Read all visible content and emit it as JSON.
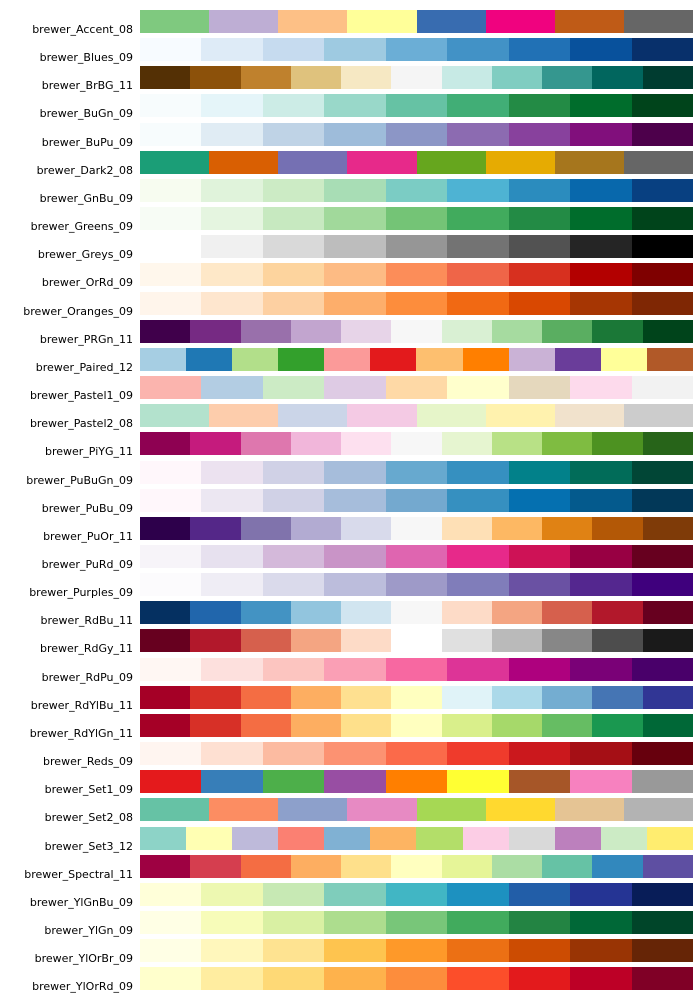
{
  "figure": {
    "background": "#ffffff",
    "text_color": "#000000"
  },
  "chart_data": {
    "type": "table",
    "description": "ColorBrewer palette swatch chart: each row shows a palette name and its discrete color swatches",
    "legend": "none",
    "grid": false,
    "rows": [
      {
        "label": "brewer_Accent_08",
        "colors": [
          "#7fc97f",
          "#beaed4",
          "#fdc086",
          "#ffff99",
          "#386cb0",
          "#f0027f",
          "#bf5b17",
          "#666666"
        ]
      },
      {
        "label": "brewer_Blues_09",
        "colors": [
          "#f7fbff",
          "#deebf7",
          "#c6dbef",
          "#9ecae1",
          "#6baed6",
          "#4292c6",
          "#2171b5",
          "#08519c",
          "#08306b"
        ]
      },
      {
        "label": "brewer_BrBG_11",
        "colors": [
          "#543005",
          "#8c510a",
          "#bf812d",
          "#dfc27d",
          "#f6e8c3",
          "#f5f5f5",
          "#c7eae5",
          "#80cdc1",
          "#35978f",
          "#01665e",
          "#003c30"
        ]
      },
      {
        "label": "brewer_BuGn_09",
        "colors": [
          "#f7fcfd",
          "#e5f5f9",
          "#ccece6",
          "#99d8c9",
          "#66c2a4",
          "#41ae76",
          "#238b45",
          "#006d2c",
          "#00441b"
        ]
      },
      {
        "label": "brewer_BuPu_09",
        "colors": [
          "#f7fcfd",
          "#e0ecf4",
          "#bfd3e6",
          "#9ebcda",
          "#8c96c6",
          "#8c6bb1",
          "#88419d",
          "#810f7c",
          "#4d004b"
        ]
      },
      {
        "label": "brewer_Dark2_08",
        "colors": [
          "#1b9e77",
          "#d95f02",
          "#7570b3",
          "#e7298a",
          "#66a61e",
          "#e6ab02",
          "#a6761d",
          "#666666"
        ]
      },
      {
        "label": "brewer_GnBu_09",
        "colors": [
          "#f7fcf0",
          "#e0f3db",
          "#ccebc5",
          "#a8ddb5",
          "#7bccc4",
          "#4eb3d3",
          "#2b8cbe",
          "#0868ac",
          "#084081"
        ]
      },
      {
        "label": "brewer_Greens_09",
        "colors": [
          "#f7fcf5",
          "#e5f5e0",
          "#c7e9c0",
          "#a1d99b",
          "#74c476",
          "#41ab5d",
          "#238b45",
          "#006d2c",
          "#00441b"
        ]
      },
      {
        "label": "brewer_Greys_09",
        "colors": [
          "#ffffff",
          "#f0f0f0",
          "#d9d9d9",
          "#bdbdbd",
          "#969696",
          "#737373",
          "#525252",
          "#252525",
          "#000000"
        ]
      },
      {
        "label": "brewer_OrRd_09",
        "colors": [
          "#fff7ec",
          "#fee8c8",
          "#fdd49e",
          "#fdbb84",
          "#fc8d59",
          "#ef6548",
          "#d7301f",
          "#b30000",
          "#7f0000"
        ]
      },
      {
        "label": "brewer_Oranges_09",
        "colors": [
          "#fff5eb",
          "#fee6ce",
          "#fdd0a2",
          "#fdae6b",
          "#fd8d3c",
          "#f16913",
          "#d94801",
          "#a63603",
          "#7f2704"
        ]
      },
      {
        "label": "brewer_PRGn_11",
        "colors": [
          "#40004b",
          "#762a83",
          "#9970ab",
          "#c2a5cf",
          "#e7d4e8",
          "#f7f7f7",
          "#d9f0d3",
          "#a6dba0",
          "#5aae61",
          "#1b7837",
          "#00441b"
        ]
      },
      {
        "label": "brewer_Paired_12",
        "colors": [
          "#a6cee3",
          "#1f78b4",
          "#b2df8a",
          "#33a02c",
          "#fb9a99",
          "#e31a1c",
          "#fdbf6f",
          "#ff7f00",
          "#cab2d6",
          "#6a3d9a",
          "#ffff99",
          "#b15928"
        ]
      },
      {
        "label": "brewer_Pastel1_09",
        "colors": [
          "#fbb4ae",
          "#b3cde3",
          "#ccebc5",
          "#decbe4",
          "#fed9a6",
          "#ffffcc",
          "#e5d8bd",
          "#fddaec",
          "#f2f2f2"
        ]
      },
      {
        "label": "brewer_Pastel2_08",
        "colors": [
          "#b3e2cd",
          "#fdcdac",
          "#cbd5e8",
          "#f4cae4",
          "#e6f5c9",
          "#fff2ae",
          "#f1e2cc",
          "#cccccc"
        ]
      },
      {
        "label": "brewer_PiYG_11",
        "colors": [
          "#8e0152",
          "#c51b7d",
          "#de77ae",
          "#f1b6da",
          "#fde0ef",
          "#f7f7f7",
          "#e6f5d0",
          "#b8e186",
          "#7fbc41",
          "#4d9221",
          "#276419"
        ]
      },
      {
        "label": "brewer_PuBuGn_09",
        "colors": [
          "#fff7fb",
          "#ece2f0",
          "#d0d1e6",
          "#a6bddb",
          "#67a9cf",
          "#3690c0",
          "#02818a",
          "#016c59",
          "#014636"
        ]
      },
      {
        "label": "brewer_PuBu_09",
        "colors": [
          "#fff7fb",
          "#ece7f2",
          "#d0d1e6",
          "#a6bddb",
          "#74a9cf",
          "#3690c0",
          "#0570b0",
          "#045a8d",
          "#023858"
        ]
      },
      {
        "label": "brewer_PuOr_11",
        "colors": [
          "#2d004b",
          "#542788",
          "#8073ac",
          "#b2abd2",
          "#d8daeb",
          "#f7f7f7",
          "#fee0b6",
          "#fdb863",
          "#e08214",
          "#b35806",
          "#7f3b08"
        ]
      },
      {
        "label": "brewer_PuRd_09",
        "colors": [
          "#f7f4f9",
          "#e7e1ef",
          "#d4b9da",
          "#c994c7",
          "#df65b0",
          "#e7298a",
          "#ce1256",
          "#980043",
          "#67001f"
        ]
      },
      {
        "label": "brewer_Purples_09",
        "colors": [
          "#fcfbfd",
          "#efedf5",
          "#dadaeb",
          "#bcbddc",
          "#9e9ac8",
          "#807dba",
          "#6a51a3",
          "#54278f",
          "#3f007d"
        ]
      },
      {
        "label": "brewer_RdBu_11",
        "colors": [
          "#053061",
          "#2166ac",
          "#4393c3",
          "#92c5de",
          "#d1e5f0",
          "#f7f7f7",
          "#fddbc7",
          "#f4a582",
          "#d6604d",
          "#b2182b",
          "#67001f"
        ]
      },
      {
        "label": "brewer_RdGy_11",
        "colors": [
          "#67001f",
          "#b2182b",
          "#d6604d",
          "#f4a582",
          "#fddbc7",
          "#ffffff",
          "#e0e0e0",
          "#bababa",
          "#878787",
          "#4d4d4d",
          "#1a1a1a"
        ]
      },
      {
        "label": "brewer_RdPu_09",
        "colors": [
          "#fff7f3",
          "#fde0dd",
          "#fcc5c0",
          "#fa9fb5",
          "#f768a1",
          "#dd3497",
          "#ae017e",
          "#7a0177",
          "#49006a"
        ]
      },
      {
        "label": "brewer_RdYlBu_11",
        "colors": [
          "#a50026",
          "#d73027",
          "#f46d43",
          "#fdae61",
          "#fee090",
          "#ffffbf",
          "#e0f3f8",
          "#abd9e9",
          "#74add1",
          "#4575b4",
          "#313695"
        ]
      },
      {
        "label": "brewer_RdYlGn_11",
        "colors": [
          "#a50026",
          "#d73027",
          "#f46d43",
          "#fdae61",
          "#fee08b",
          "#ffffbf",
          "#d9ef8b",
          "#a6d96a",
          "#66bd63",
          "#1a9850",
          "#006837"
        ]
      },
      {
        "label": "brewer_Reds_09",
        "colors": [
          "#fff5f0",
          "#fee0d2",
          "#fcbba1",
          "#fc9272",
          "#fb6a4a",
          "#ef3b2c",
          "#cb181d",
          "#a50f15",
          "#67000d"
        ]
      },
      {
        "label": "brewer_Set1_09",
        "colors": [
          "#e41a1c",
          "#377eb8",
          "#4daf4a",
          "#984ea3",
          "#ff7f00",
          "#ffff33",
          "#a65628",
          "#f781bf",
          "#999999"
        ]
      },
      {
        "label": "brewer_Set2_08",
        "colors": [
          "#66c2a5",
          "#fc8d62",
          "#8da0cb",
          "#e78ac3",
          "#a6d854",
          "#ffd92f",
          "#e5c494",
          "#b3b3b3"
        ]
      },
      {
        "label": "brewer_Set3_12",
        "colors": [
          "#8dd3c7",
          "#ffffb3",
          "#bebada",
          "#fb8072",
          "#80b1d3",
          "#fdb462",
          "#b3de69",
          "#fccde5",
          "#d9d9d9",
          "#bc80bd",
          "#ccebc5",
          "#ffed6f"
        ]
      },
      {
        "label": "brewer_Spectral_11",
        "colors": [
          "#9e0142",
          "#d53e4f",
          "#f46d43",
          "#fdae61",
          "#fee08b",
          "#ffffbf",
          "#e6f598",
          "#abdda4",
          "#66c2a5",
          "#3288bd",
          "#5e4fa2"
        ]
      },
      {
        "label": "brewer_YlGnBu_09",
        "colors": [
          "#ffffd9",
          "#edf8b1",
          "#c7e9b4",
          "#7fcdbb",
          "#41b6c4",
          "#1d91c0",
          "#225ea8",
          "#253494",
          "#081d58"
        ]
      },
      {
        "label": "brewer_YlGn_09",
        "colors": [
          "#ffffe5",
          "#f7fcb9",
          "#d9f0a3",
          "#addd8e",
          "#78c679",
          "#41ab5d",
          "#238443",
          "#006837",
          "#004529"
        ]
      },
      {
        "label": "brewer_YlOrBr_09",
        "colors": [
          "#ffffe5",
          "#fff7bc",
          "#fee391",
          "#fec44f",
          "#fe9929",
          "#ec7014",
          "#cc4c02",
          "#993404",
          "#662506"
        ]
      },
      {
        "label": "brewer_YlOrRd_09",
        "colors": [
          "#ffffcc",
          "#ffeda0",
          "#fed976",
          "#feb24c",
          "#fd8d3c",
          "#fc4e2a",
          "#e31a1c",
          "#bd0026",
          "#800026"
        ]
      }
    ]
  }
}
